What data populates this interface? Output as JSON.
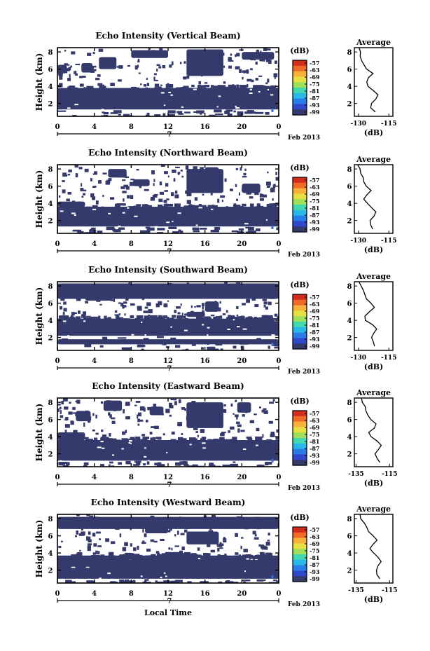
{
  "x_axis_label": "Local Time",
  "date_label": "Feb 2013",
  "day_label": "7",
  "x_ticks": [
    "0",
    "4",
    "8",
    "12",
    "16",
    "20",
    "0"
  ],
  "y_ticks": [
    "2",
    "4",
    "6",
    "8"
  ],
  "colorbar_unit": "(dB)",
  "colorbar_ticks": [
    "-57",
    "-63",
    "-69",
    "-75",
    "-81",
    "-87",
    "-93",
    "-99"
  ],
  "profile_title": "Average",
  "profile_xlabel": "(dB)",
  "colors": {
    "fill": "#353a6c",
    "blob": "#3a6cd8",
    "line": "#000000"
  },
  "colorbar_colors": [
    "#d42c1c",
    "#f06a2a",
    "#f6b23a",
    "#e6e042",
    "#9ee05a",
    "#44d8b0",
    "#2ab8e8",
    "#2a7ce6",
    "#3048cc",
    "#353a6c"
  ],
  "chart_data": [
    {
      "type": "heatmap",
      "title": "Echo Intensity (Vertical Beam)",
      "ylabel": "Height (km)",
      "xlim": [
        0,
        24
      ],
      "ylim": [
        0.5,
        8.5
      ],
      "dense_layer_km": [
        1.3,
        3.8
      ],
      "patches": [
        [
          0,
          5.5,
          1,
          6.5
        ],
        [
          2.6,
          5.6,
          3.8,
          6.7
        ],
        [
          4.5,
          6.0,
          6.4,
          7.4
        ],
        [
          14,
          5.2,
          18,
          8.3
        ],
        [
          8,
          7.3,
          12,
          8.2
        ],
        [
          20,
          7.1,
          23.5,
          8.0
        ],
        [
          10,
          7.6,
          10.6,
          8.2
        ]
      ],
      "profile": {
        "x_ticks": [
          "-130",
          "-115"
        ],
        "xlim": [
          -132,
          -113
        ],
        "x": [
          -122,
          -124,
          -124,
          -121,
          -120,
          -123,
          -125,
          -126,
          -125,
          -123,
          -126,
          -127,
          -128,
          -129,
          -129,
          -130
        ],
        "y": [
          1.0,
          1.5,
          2.0,
          2.5,
          3.0,
          3.5,
          4.0,
          4.5,
          5.0,
          5.5,
          6.0,
          6.5,
          7.0,
          7.5,
          8.0,
          8.5
        ]
      }
    },
    {
      "type": "heatmap",
      "title": "Echo Intensity (Northward Beam)",
      "ylabel": "Height (km)",
      "xlim": [
        0,
        24
      ],
      "ylim": [
        0.5,
        8.5
      ],
      "dense_layer_km": [
        1.3,
        3.6
      ],
      "patches": [
        [
          0,
          3.6,
          3,
          4.2
        ],
        [
          5.5,
          7.0,
          7.5,
          8.0
        ],
        [
          14,
          5.2,
          18,
          8.0
        ],
        [
          16,
          7.2,
          17.5,
          8.2
        ],
        [
          8.2,
          6.0,
          10,
          6.8
        ],
        [
          20,
          5.2,
          22,
          6.3
        ]
      ],
      "profile": {
        "x_ticks": [
          "-130",
          "-115"
        ],
        "xlim": [
          -132,
          -113
        ],
        "x": [
          -123,
          -124,
          -124,
          -122,
          -121,
          -124,
          -126,
          -127,
          -126,
          -124,
          -126,
          -127,
          -128,
          -129,
          -129,
          -130
        ],
        "y": [
          1.0,
          1.5,
          2.0,
          2.5,
          3.0,
          3.5,
          4.0,
          4.5,
          5.0,
          5.5,
          6.0,
          6.5,
          7.0,
          7.5,
          8.0,
          8.5
        ]
      }
    },
    {
      "type": "heatmap",
      "title": "Echo Intensity (Southward Beam)",
      "ylabel": "Height (km)",
      "xlim": [
        0,
        24
      ],
      "ylim": [
        0.5,
        8.5
      ],
      "dense_layer_km": [
        2.2,
        4.2
      ],
      "patches": [
        [
          0,
          1.2,
          24,
          1.8
        ],
        [
          0,
          6.5,
          24,
          8.3
        ],
        [
          16,
          5.0,
          17.5,
          6.2
        ],
        [
          14,
          4.4,
          16,
          5.0
        ],
        [
          3,
          6.3,
          6,
          7.0
        ],
        [
          10,
          7.0,
          12,
          7.8
        ]
      ],
      "profile": {
        "x_ticks": [
          "-130",
          "-115"
        ],
        "xlim": [
          -132,
          -113
        ],
        "x": [
          -122,
          -123,
          -124,
          -123,
          -121,
          -123,
          -126,
          -127,
          -124,
          -122,
          -124,
          -126,
          -127,
          -128,
          -129,
          -130
        ],
        "y": [
          1.0,
          1.5,
          2.0,
          2.5,
          3.0,
          3.5,
          4.0,
          4.5,
          5.0,
          5.5,
          6.0,
          6.5,
          7.0,
          7.5,
          8.0,
          8.5
        ]
      }
    },
    {
      "type": "heatmap",
      "title": "Echo Intensity (Eastward Beam)",
      "ylabel": "Height (km)",
      "xlim": [
        0,
        24
      ],
      "ylim": [
        0.5,
        8.5
      ],
      "dense_layer_km": [
        1.2,
        3.6
      ],
      "patches": [
        [
          0,
          3.6,
          3,
          4.5
        ],
        [
          2,
          5.8,
          3.6,
          7.0
        ],
        [
          5,
          7.0,
          7,
          8.2
        ],
        [
          14,
          5.0,
          18,
          8.0
        ],
        [
          10,
          6.5,
          11.5,
          7.5
        ],
        [
          19.5,
          6.8,
          21,
          8.0
        ]
      ],
      "profile": {
        "x_ticks": [
          "-135",
          "-115"
        ],
        "xlim": [
          -136,
          -113
        ],
        "x": [
          -121,
          -123,
          -124,
          -122,
          -120,
          -122,
          -126,
          -127,
          -124,
          -123,
          -126,
          -128,
          -129,
          -130,
          -131,
          -132
        ],
        "y": [
          1.0,
          1.5,
          2.0,
          2.5,
          3.0,
          3.5,
          4.0,
          4.5,
          5.0,
          5.5,
          6.0,
          6.5,
          7.0,
          7.5,
          8.0,
          8.5
        ]
      }
    },
    {
      "type": "heatmap",
      "title": "Echo Intensity (Westward Beam)",
      "ylabel": "Height (km)",
      "xlim": [
        0,
        24
      ],
      "ylim": [
        0.5,
        8.5
      ],
      "dense_layer_km": [
        1.0,
        3.7
      ],
      "patches": [
        [
          0,
          2.4,
          24,
          3.2
        ],
        [
          0,
          6.8,
          24,
          8.2
        ],
        [
          14,
          5.0,
          17.5,
          6.5
        ],
        [
          3,
          7.0,
          4.5,
          7.8
        ],
        [
          9.5,
          6.3,
          12,
          7.0
        ]
      ],
      "profile": {
        "x_ticks": [
          "-135",
          "-115"
        ],
        "xlim": [
          -136,
          -113
        ],
        "x": [
          -121,
          -122,
          -123,
          -122,
          -120,
          -122,
          -125,
          -127,
          -125,
          -123,
          -125,
          -127,
          -129,
          -130,
          -132,
          -133
        ],
        "y": [
          1.0,
          1.5,
          2.0,
          2.5,
          3.0,
          3.5,
          4.0,
          4.5,
          5.0,
          5.5,
          6.0,
          6.5,
          7.0,
          7.5,
          8.0,
          8.5
        ]
      }
    }
  ]
}
